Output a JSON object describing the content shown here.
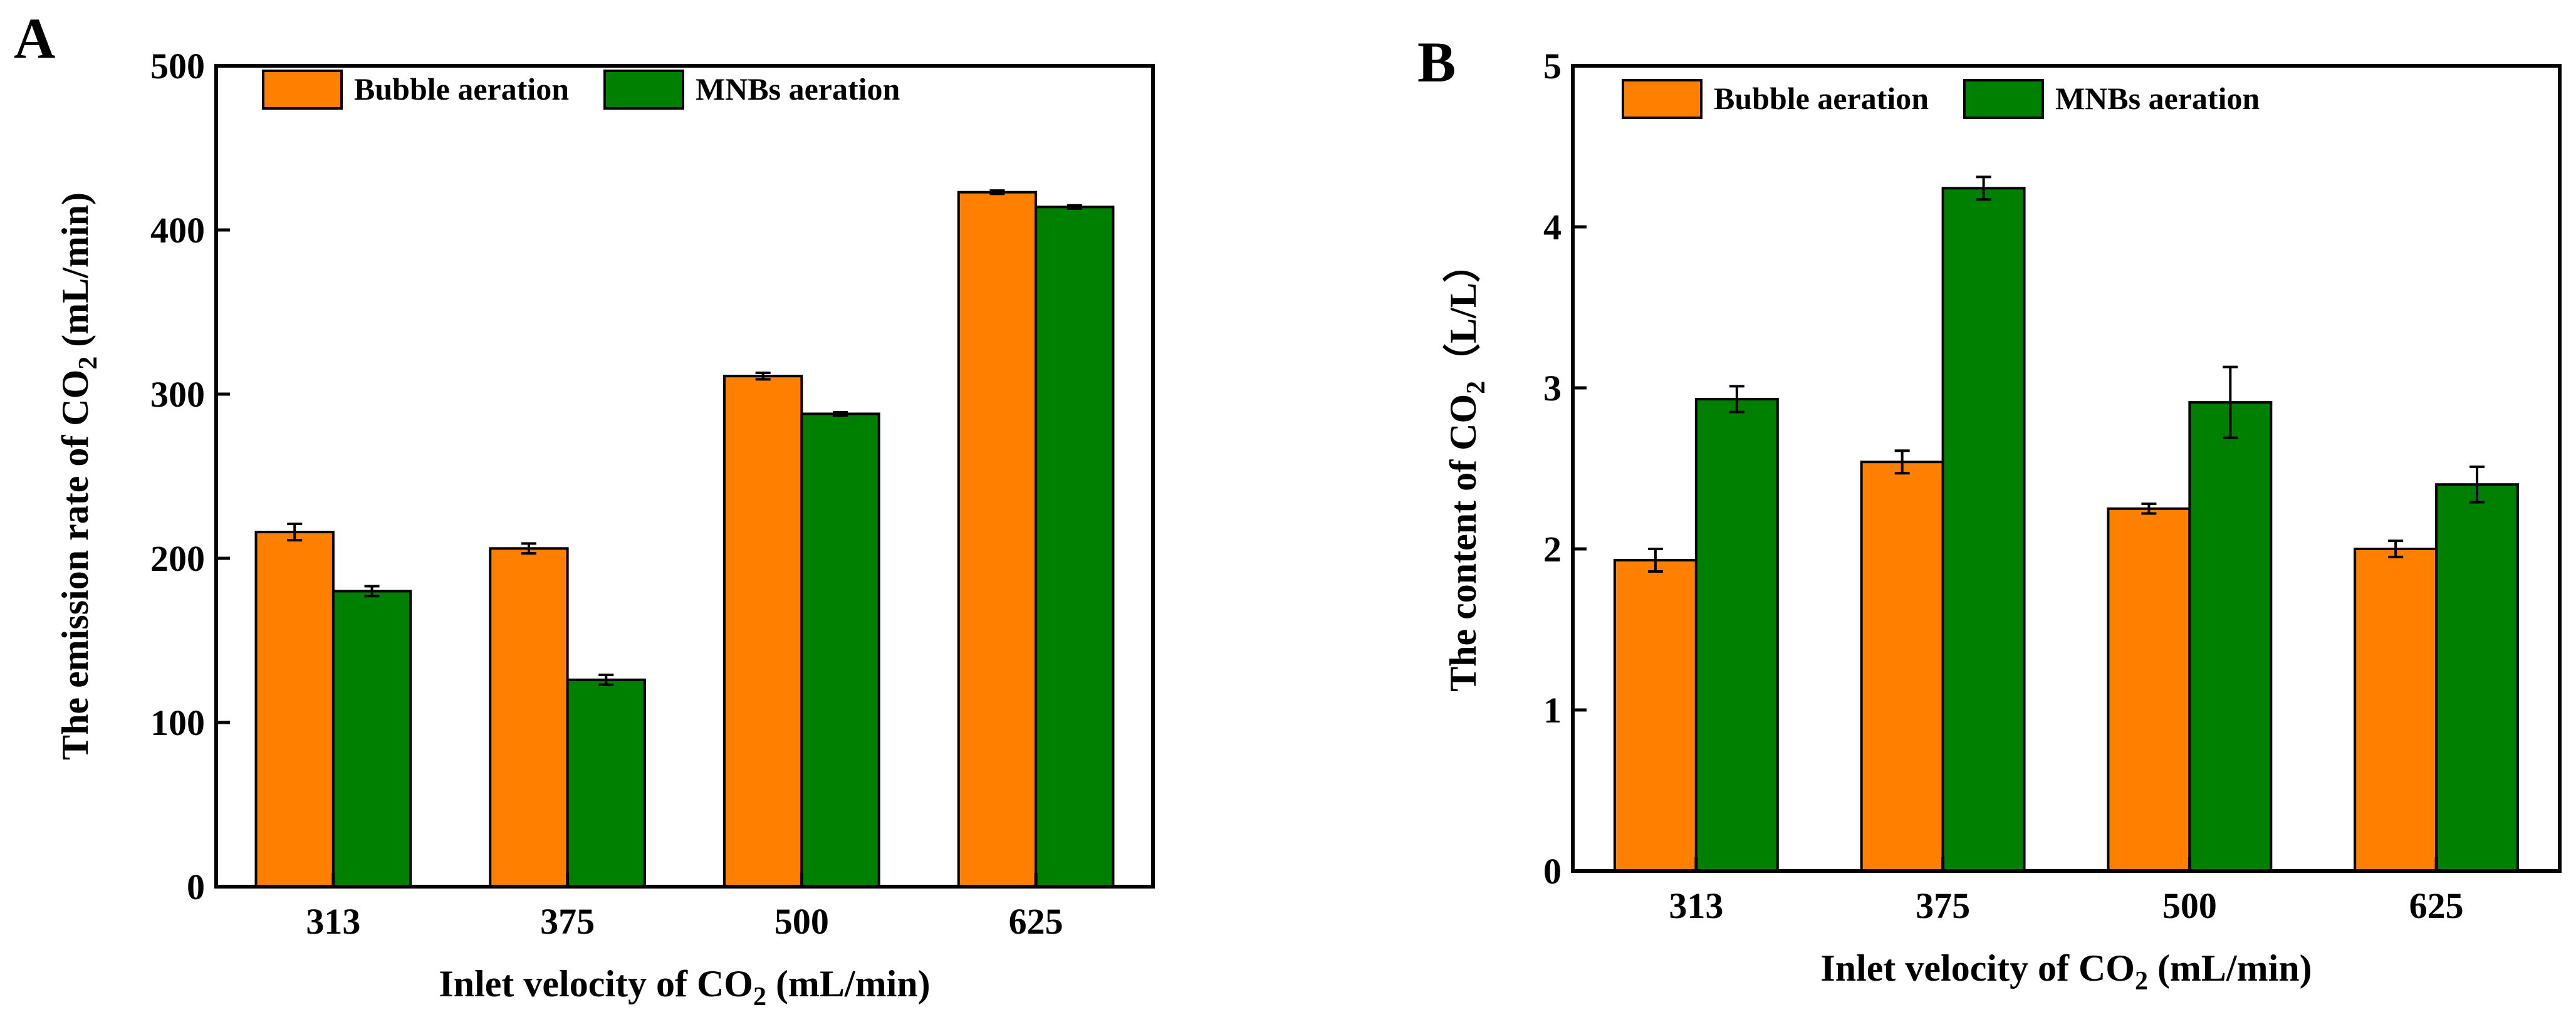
{
  "chart_data": [
    {
      "panel": "A",
      "type": "bar",
      "title": "",
      "xlabel": "Inlet velocity of CO",
      "xlabel_sub": "2",
      "xlabel_tail": " (mL/min)",
      "ylabel": "The emission rate of CO",
      "ylabel_sub": "2",
      "ylabel_tail": " (mL/min)",
      "ylim": [
        0,
        500
      ],
      "yticks": [
        0,
        100,
        200,
        300,
        400,
        500
      ],
      "categories": [
        "313",
        "375",
        "500",
        "625"
      ],
      "legend": "top-left",
      "series": [
        {
          "name": "Bubble aeration",
          "color": "#FF8000",
          "values": [
            216,
            206,
            311,
            423
          ],
          "errors": [
            5,
            3,
            2,
            1
          ]
        },
        {
          "name": "MNBs aeration",
          "color": "#008000",
          "values": [
            180,
            126,
            288,
            414
          ],
          "errors": [
            3,
            3,
            1,
            1
          ]
        }
      ]
    },
    {
      "panel": "B",
      "type": "bar",
      "title": "",
      "xlabel": "Inlet velocity of CO",
      "xlabel_sub": "2",
      "xlabel_tail": " (mL/min)",
      "ylabel": "The content of CO",
      "ylabel_sub": "2",
      "ylabel_tail": "（L/L）",
      "ylim": [
        0,
        5
      ],
      "yticks": [
        0,
        1,
        2,
        3,
        4,
        5
      ],
      "categories": [
        "313",
        "375",
        "500",
        "625"
      ],
      "legend": "top-left",
      "series": [
        {
          "name": "Bubble aeration",
          "color": "#FF8000",
          "values": [
            1.93,
            2.54,
            2.25,
            2.0
          ],
          "errors": [
            0.07,
            0.07,
            0.03,
            0.05
          ]
        },
        {
          "name": "MNBs aeration",
          "color": "#008000",
          "values": [
            2.93,
            4.24,
            2.91,
            2.4
          ],
          "errors": [
            0.08,
            0.07,
            0.22,
            0.11
          ]
        }
      ]
    }
  ]
}
